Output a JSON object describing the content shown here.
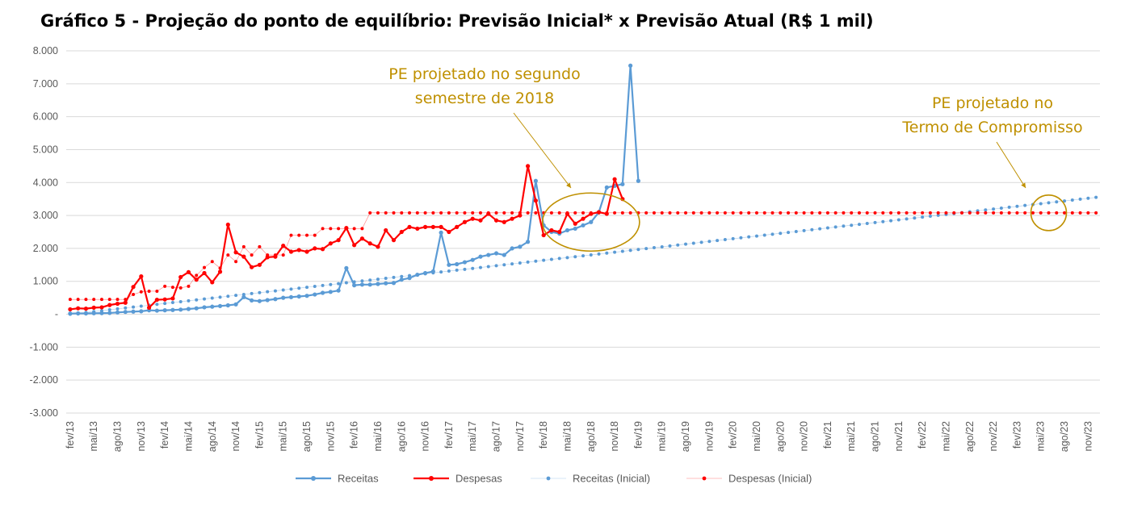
{
  "chart_data": {
    "type": "line",
    "title": "Gráfico 5 - Projeção do ponto de equilíbrio: Previsão Inicial* x Previsão Atual (R$ 1 mil)",
    "xlabel": "",
    "ylabel": "",
    "ylim": [
      -3000,
      8000
    ],
    "ytick_values": [
      8000,
      7000,
      6000,
      5000,
      4000,
      3000,
      2000,
      1000,
      0,
      -1000,
      -2000,
      -3000
    ],
    "ytick_labels": [
      "8.000",
      "7.000",
      "6.000",
      "5.000",
      "4.000",
      "3.000",
      "2.000",
      "1.000",
      "-",
      "-1.000",
      "-2.000",
      "-3.000"
    ],
    "x_start": "fev/13",
    "x_end": "dez/23",
    "x_tick_labels": [
      "fev/13",
      "mai/13",
      "ago/13",
      "nov/13",
      "fev/14",
      "mai/14",
      "ago/14",
      "nov/14",
      "fev/15",
      "mai/15",
      "ago/15",
      "nov/15",
      "fev/16",
      "mai/16",
      "ago/16",
      "nov/16",
      "fev/17",
      "mai/17",
      "ago/17",
      "nov/17",
      "fev/18",
      "mai/18",
      "ago/18",
      "nov/18",
      "fev/19",
      "mai/19",
      "ago/19",
      "nov/19",
      "fev/20",
      "mai/20",
      "ago/20",
      "nov/20",
      "fev/21",
      "mai/21",
      "ago/21",
      "nov/21",
      "fev/22",
      "mai/22",
      "ago/22",
      "nov/22",
      "fev/23",
      "mai/23",
      "ago/23",
      "nov/23"
    ],
    "grid": true,
    "legend_position": "bottom",
    "series": [
      {
        "name": "Receitas",
        "color": "#5B9BD5",
        "style": "solid-marker",
        "start_index": 0,
        "values": [
          20,
          25,
          25,
          30,
          35,
          40,
          55,
          70,
          80,
          90,
          120,
          110,
          120,
          130,
          140,
          160,
          180,
          210,
          230,
          250,
          270,
          300,
          520,
          420,
          400,
          430,
          460,
          500,
          520,
          540,
          560,
          600,
          650,
          680,
          720,
          1400,
          880,
          900,
          900,
          920,
          940,
          950,
          1050,
          1100,
          1200,
          1250,
          1300,
          2480,
          1500,
          1520,
          1580,
          1650,
          1750,
          1800,
          1850,
          1800,
          2000,
          2050,
          2200,
          4050,
          2700,
          2500,
          2450,
          2550,
          2600,
          2700,
          2800,
          3100,
          3850,
          3900,
          3950,
          7550,
          4050
        ]
      },
      {
        "name": "Despesas",
        "color": "#FF0000",
        "style": "solid-marker",
        "start_index": 0,
        "values": [
          150,
          180,
          170,
          200,
          210,
          280,
          320,
          350,
          830,
          1150,
          200,
          440,
          450,
          480,
          1130,
          1280,
          1050,
          1250,
          970,
          1290,
          2720,
          1880,
          1750,
          1430,
          1500,
          1730,
          1750,
          2080,
          1900,
          1950,
          1900,
          2000,
          1980,
          2150,
          2250,
          2620,
          2100,
          2300,
          2150,
          2050,
          2550,
          2250,
          2500,
          2650,
          2600,
          2650,
          2650,
          2650,
          2500,
          2650,
          2800,
          2900,
          2850,
          3050,
          2850,
          2800,
          2900,
          3000,
          4500,
          3450,
          2400,
          2550,
          2500,
          3050,
          2750,
          2900,
          3050,
          3100,
          3050,
          4100,
          3500
        ]
      },
      {
        "name": "Receitas (Inicial)",
        "color": "#5B9BD5",
        "style": "dotted",
        "start_index": 0,
        "end_index": 130,
        "start_value": 0,
        "end_value": 3550
      },
      {
        "name": "Despesas (Inicial)",
        "color": "#FF0000",
        "style": "dotted",
        "start_index": 0,
        "values": [
          450,
          450,
          450,
          450,
          450,
          450,
          450,
          450,
          600,
          680,
          700,
          700,
          850,
          820,
          800,
          850,
          1180,
          1420,
          1600,
          1400,
          1800,
          1600,
          2050,
          1800,
          2050,
          1800,
          1800,
          1800,
          2400,
          2400,
          2400,
          2400,
          2600,
          2600,
          2600,
          2600,
          2600,
          2600,
          3080
        ],
        "flat_from_index": 38,
        "flat_value": 3080,
        "end_index": 130
      }
    ],
    "annotations": [
      {
        "text_lines": [
          "PE projetado no segundo",
          "semestre de 2018"
        ],
        "color": "#BF9000"
      },
      {
        "text_lines": [
          "PE projetado no",
          "Termo de Compromisso"
        ],
        "color": "#BF9000"
      }
    ],
    "highlight_circles": [
      {
        "label": "segundo semestre de 2018",
        "center_index": 66,
        "center_value": 2800,
        "radius_index": 4.8,
        "radius_value": 860
      },
      {
        "label": "Termo de Compromisso",
        "center_index": 124,
        "center_value": 3080,
        "radius_index": 2.6,
        "radius_value": 520
      }
    ]
  }
}
